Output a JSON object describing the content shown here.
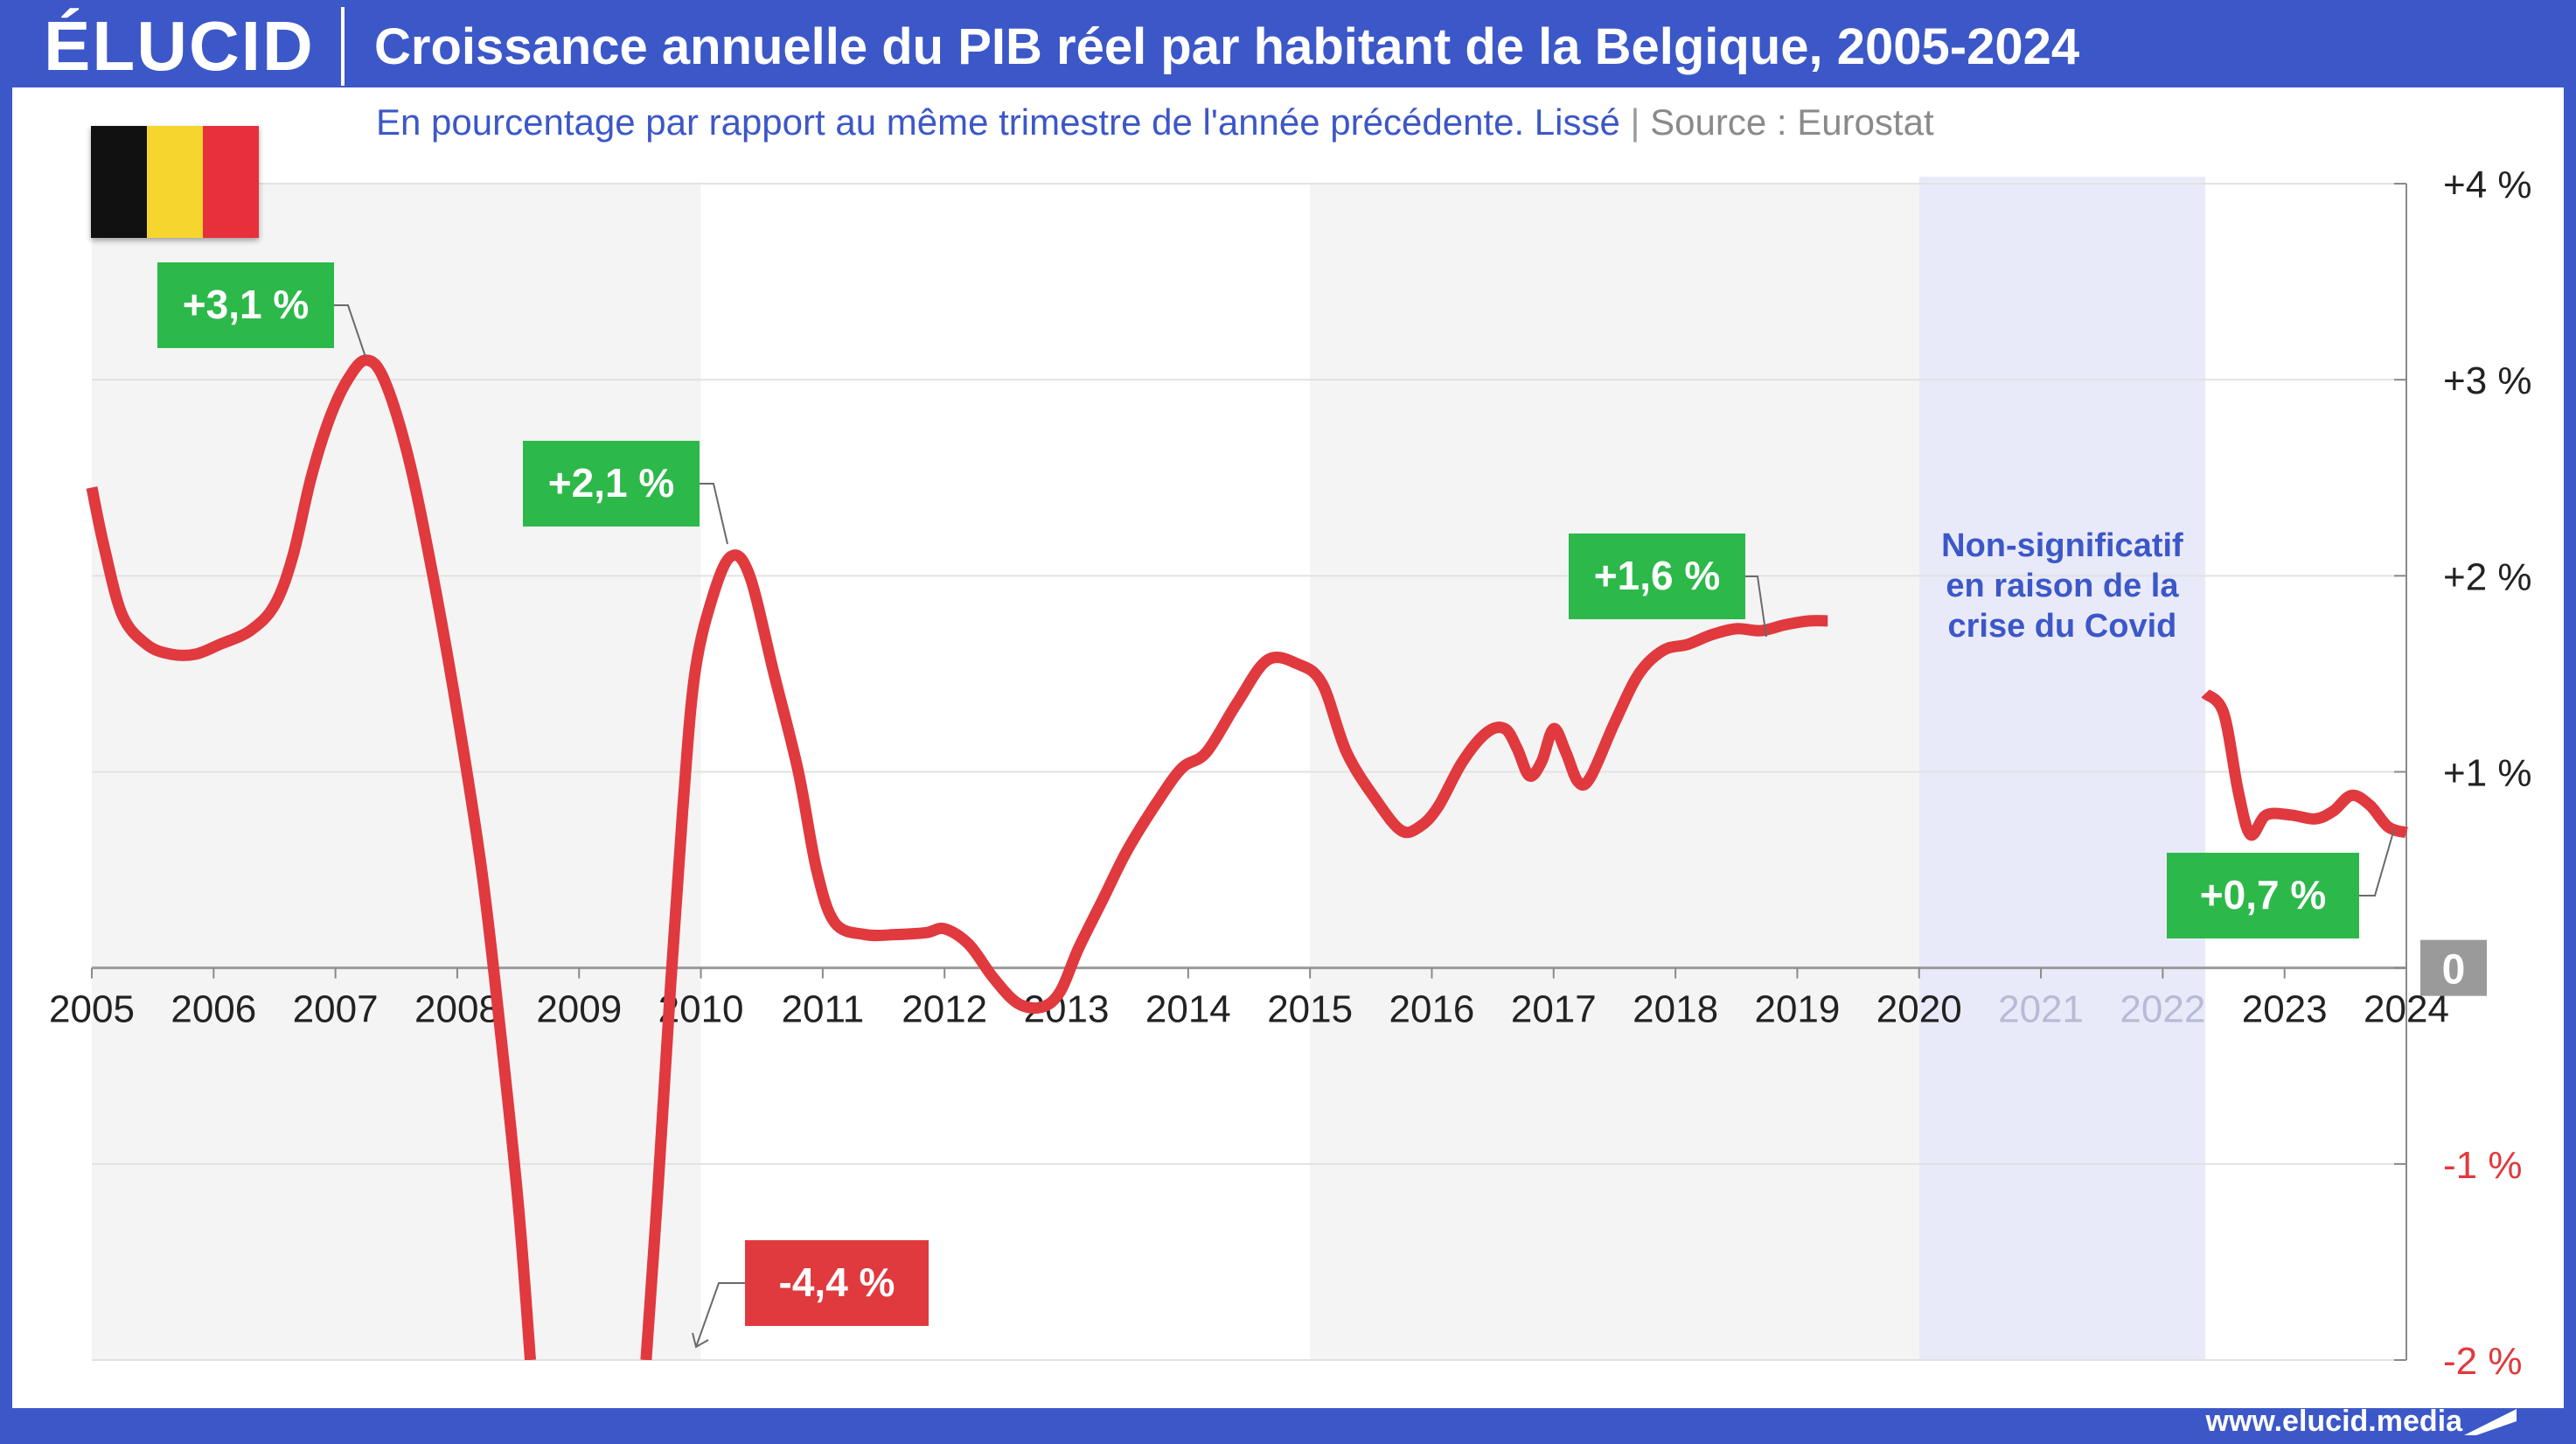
{
  "header": {
    "logo": "ÉLUCID",
    "title": "Croissance annuelle du PIB réel par habitant de la Belgique, 2005-2024"
  },
  "subtitle": {
    "main": "En pourcentage par rapport au même trimestre de l'année précédente. Lissé",
    "separator": "|",
    "source": "Source : Eurostat"
  },
  "footer": {
    "url": "www.elucid.media"
  },
  "flag": {
    "colors": [
      "#111111",
      "#f5d52e",
      "#e8303c"
    ]
  },
  "colors": {
    "line": "#e0393e",
    "positive_label": "#2db84a",
    "negative_label": "#e0393e",
    "zero_badge": "#9a9a9a",
    "covid_band": "#e9eaf9",
    "shade_band": "#f4f4f4",
    "brand": "#3c57c8"
  },
  "chart_data": {
    "type": "line",
    "title": "Croissance annuelle du PIB réel par habitant de la Belgique, 2005-2024",
    "xlabel": "",
    "ylabel": "",
    "xlim": [
      2005,
      2024
    ],
    "ylim": [
      -2,
      4
    ],
    "x_ticks": [
      "2005",
      "2006",
      "2007",
      "2008",
      "2009",
      "2010",
      "2011",
      "2012",
      "2013",
      "2014",
      "2015",
      "2016",
      "2017",
      "2018",
      "2019",
      "2020",
      "2021",
      "2022",
      "2023",
      "2024"
    ],
    "y_ticks": [
      {
        "value": 4,
        "label": "+4 %"
      },
      {
        "value": 3,
        "label": "+3 %"
      },
      {
        "value": 2,
        "label": "+2 %"
      },
      {
        "value": 1,
        "label": "+1 %"
      },
      {
        "value": 0,
        "label": "0"
      },
      {
        "value": -1,
        "label": "-1 %"
      },
      {
        "value": -2,
        "label": "-2 %"
      }
    ],
    "grid": true,
    "shaded_periods": [
      [
        2005,
        2010
      ],
      [
        2015,
        2020
      ]
    ],
    "covid_period": [
      2020,
      2022.35
    ],
    "covid_note": [
      "Non-significatif",
      "en raison de la",
      "crise du Covid"
    ],
    "series": [
      {
        "segments": [
          [
            [
              2005.0,
              2.45
            ],
            [
              2005.1,
              2.15
            ],
            [
              2005.25,
              1.8
            ],
            [
              2005.45,
              1.65
            ],
            [
              2005.65,
              1.6
            ],
            [
              2005.85,
              1.6
            ],
            [
              2006.05,
              1.65
            ],
            [
              2006.3,
              1.72
            ],
            [
              2006.5,
              1.85
            ],
            [
              2006.65,
              2.1
            ],
            [
              2006.8,
              2.5
            ],
            [
              2006.95,
              2.8
            ],
            [
              2007.1,
              3.0
            ],
            [
              2007.25,
              3.1
            ],
            [
              2007.4,
              3.0
            ],
            [
              2007.6,
              2.6
            ],
            [
              2007.8,
              2.0
            ],
            [
              2008.0,
              1.3
            ],
            [
              2008.2,
              0.5
            ],
            [
              2008.35,
              -0.3
            ],
            [
              2008.5,
              -1.2
            ],
            [
              2008.6,
              -2.0
            ]
          ],
          [
            [
              2009.55,
              -2.0
            ],
            [
              2009.65,
              -1.1
            ],
            [
              2009.75,
              -0.1
            ],
            [
              2009.85,
              0.8
            ],
            [
              2009.95,
              1.5
            ],
            [
              2010.1,
              1.9
            ],
            [
              2010.25,
              2.1
            ],
            [
              2010.4,
              2.0
            ],
            [
              2010.6,
              1.5
            ],
            [
              2010.8,
              1.0
            ],
            [
              2010.95,
              0.5
            ],
            [
              2011.1,
              0.23
            ],
            [
              2011.35,
              0.17
            ],
            [
              2011.6,
              0.17
            ],
            [
              2011.85,
              0.18
            ],
            [
              2012.0,
              0.2
            ],
            [
              2012.2,
              0.12
            ],
            [
              2012.4,
              -0.05
            ],
            [
              2012.6,
              -0.18
            ],
            [
              2012.8,
              -0.2
            ],
            [
              2012.95,
              -0.12
            ],
            [
              2013.1,
              0.1
            ],
            [
              2013.3,
              0.35
            ],
            [
              2013.5,
              0.6
            ],
            [
              2013.75,
              0.85
            ],
            [
              2013.95,
              1.02
            ],
            [
              2014.15,
              1.1
            ],
            [
              2014.4,
              1.35
            ],
            [
              2014.65,
              1.57
            ],
            [
              2014.9,
              1.55
            ],
            [
              2015.1,
              1.45
            ],
            [
              2015.3,
              1.1
            ],
            [
              2015.55,
              0.85
            ],
            [
              2015.75,
              0.7
            ],
            [
              2015.9,
              0.72
            ],
            [
              2016.05,
              0.82
            ],
            [
              2016.25,
              1.05
            ],
            [
              2016.45,
              1.2
            ],
            [
              2016.6,
              1.22
            ],
            [
              2016.7,
              1.12
            ],
            [
              2016.8,
              0.98
            ],
            [
              2016.9,
              1.05
            ],
            [
              2017.0,
              1.22
            ],
            [
              2017.1,
              1.1
            ],
            [
              2017.2,
              0.95
            ],
            [
              2017.3,
              0.97
            ],
            [
              2017.5,
              1.25
            ],
            [
              2017.7,
              1.5
            ],
            [
              2017.9,
              1.62
            ],
            [
              2018.1,
              1.65
            ],
            [
              2018.3,
              1.7
            ],
            [
              2018.5,
              1.73
            ],
            [
              2018.7,
              1.72
            ],
            [
              2018.9,
              1.75
            ],
            [
              2019.1,
              1.77
            ],
            [
              2019.25,
              1.77
            ]
          ],
          [
            [
              2022.35,
              1.4
            ],
            [
              2022.5,
              1.3
            ],
            [
              2022.62,
              0.9
            ],
            [
              2022.72,
              0.68
            ],
            [
              2022.85,
              0.78
            ],
            [
              2023.05,
              0.78
            ],
            [
              2023.25,
              0.76
            ],
            [
              2023.4,
              0.8
            ],
            [
              2023.55,
              0.88
            ],
            [
              2023.7,
              0.83
            ],
            [
              2023.85,
              0.72
            ],
            [
              2024.0,
              0.69
            ]
          ]
        ]
      }
    ],
    "annotations": [
      {
        "label": "+3,1 %",
        "value": 3.1,
        "sign": "positive"
      },
      {
        "label": "+2,1 %",
        "value": 2.1,
        "sign": "positive"
      },
      {
        "label": "+1,6 %",
        "value": 1.6,
        "sign": "positive"
      },
      {
        "label": "+0,7 %",
        "value": 0.7,
        "sign": "positive"
      },
      {
        "label": "-4,4 %",
        "value": -4.4,
        "sign": "negative"
      }
    ]
  }
}
